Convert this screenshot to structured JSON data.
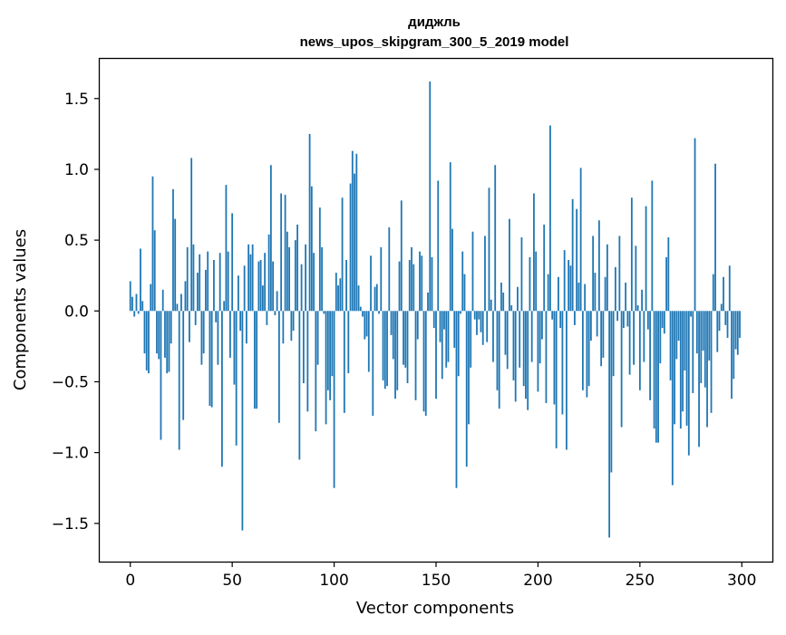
{
  "chart_data": {
    "type": "bar",
    "title": "диджль",
    "subtitle": "news_upos_skipgram_300_5_2019 model",
    "xlabel": "Vector components",
    "ylabel": "Components values",
    "xlim": [
      -15,
      315
    ],
    "ylim": [
      -1.77,
      1.78
    ],
    "xticks": [
      0,
      50,
      100,
      150,
      200,
      250,
      300
    ],
    "xtick_labels": [
      "0",
      "50",
      "100",
      "150",
      "200",
      "250",
      "300"
    ],
    "yticks": [
      1.5,
      1.0,
      0.5,
      0.0,
      -0.5,
      -1.0,
      -1.5
    ],
    "ytick_labels": [
      "1.5",
      "1.0",
      "0.5",
      "0.0",
      "−0.5",
      "−1.0",
      "−1.5"
    ],
    "grid": false,
    "bar_color": "#1f77b4",
    "values": [
      0.21,
      0.1,
      -0.04,
      0.12,
      -0.02,
      0.44,
      0.07,
      -0.3,
      -0.42,
      -0.44,
      0.19,
      0.95,
      0.57,
      -0.3,
      -0.34,
      -0.91,
      0.15,
      -0.33,
      -0.44,
      -0.43,
      -0.23,
      0.86,
      0.65,
      0.05,
      -0.98,
      0.12,
      -0.77,
      0.21,
      0.45,
      -0.22,
      1.08,
      0.47,
      -0.1,
      0.27,
      0.4,
      -0.38,
      -0.3,
      0.29,
      0.42,
      -0.67,
      -0.68,
      0.36,
      -0.08,
      -0.38,
      0.41,
      -1.1,
      0.07,
      0.89,
      0.42,
      -0.33,
      0.69,
      -0.52,
      -0.95,
      0.25,
      -0.14,
      -1.55,
      0.32,
      -0.23,
      0.47,
      0.4,
      0.47,
      -0.69,
      -0.69,
      0.35,
      0.36,
      0.18,
      0.41,
      -0.1,
      0.54,
      1.03,
      0.35,
      -0.03,
      0.14,
      -0.79,
      0.83,
      -0.23,
      0.82,
      0.56,
      0.45,
      -0.21,
      -0.14,
      0.5,
      0.61,
      -1.05,
      0.33,
      -0.51,
      0.47,
      -0.71,
      1.25,
      0.88,
      0.41,
      -0.85,
      -0.38,
      0.73,
      0.45,
      -0.02,
      -0.8,
      -0.56,
      -0.63,
      -0.46,
      -1.25,
      0.27,
      0.18,
      0.23,
      0.8,
      -0.72,
      0.36,
      -0.44,
      0.9,
      1.13,
      0.97,
      1.11,
      0.18,
      0.03,
      -0.04,
      -0.2,
      -0.18,
      -0.43,
      0.39,
      -0.74,
      0.17,
      0.19,
      -0.02,
      0.45,
      -0.49,
      -0.55,
      -0.53,
      0.59,
      -0.17,
      -0.34,
      -0.62,
      -0.56,
      0.35,
      0.78,
      -0.38,
      -0.4,
      -0.51,
      0.36,
      0.45,
      0.33,
      -0.63,
      -0.2,
      0.42,
      0.39,
      -0.71,
      -0.74,
      0.13,
      1.62,
      0.38,
      -0.12,
      -0.62,
      0.92,
      -0.22,
      -0.48,
      -0.13,
      -0.4,
      -0.36,
      1.05,
      0.58,
      -0.26,
      -1.25,
      -0.46,
      -0.02,
      0.42,
      0.26,
      -1.1,
      -0.8,
      -0.4,
      0.56,
      -0.06,
      -0.17,
      -0.06,
      -0.15,
      -0.24,
      0.53,
      -0.22,
      0.87,
      0.08,
      -0.36,
      1.03,
      -0.56,
      -0.69,
      0.2,
      0.13,
      -0.31,
      -0.41,
      0.65,
      0.04,
      -0.49,
      -0.64,
      0.17,
      -0.4,
      0.52,
      -0.53,
      -0.62,
      -0.7,
      0.38,
      -0.36,
      0.83,
      0.42,
      -0.57,
      -0.37,
      -0.2,
      0.61,
      -0.65,
      0.26,
      1.31,
      -0.06,
      -0.66,
      -0.97,
      0.24,
      -0.12,
      -0.73,
      0.43,
      -0.98,
      0.36,
      0.32,
      0.79,
      -0.1,
      0.72,
      0.2,
      1.01,
      -0.56,
      0.19,
      -0.61,
      -0.53,
      -0.21,
      0.53,
      0.27,
      -0.18,
      0.64,
      -0.39,
      -0.33,
      0.24,
      0.47,
      -1.6,
      -1.14,
      -0.46,
      0.31,
      -0.07,
      0.53,
      -0.82,
      -0.12,
      0.2,
      -0.11,
      -0.45,
      0.8,
      -0.38,
      0.46,
      0.04,
      -0.56,
      0.15,
      -0.36,
      0.74,
      -0.13,
      -0.63,
      0.92,
      -0.83,
      -0.93,
      -0.93,
      -0.37,
      -0.12,
      -0.16,
      0.38,
      0.52,
      -0.49,
      -1.23,
      -0.8,
      -0.34,
      -0.21,
      -0.83,
      -0.71,
      -0.42,
      -0.81,
      -1.02,
      -0.04,
      -0.58,
      1.22,
      -0.3,
      -0.96,
      -0.51,
      -0.28,
      -0.54,
      -0.82,
      -0.35,
      -0.72,
      0.26,
      1.04,
      -0.29,
      -0.14,
      0.05,
      0.24,
      -0.1,
      -0.19,
      0.32,
      -0.62,
      -0.48,
      -0.27,
      -0.31,
      -0.19
    ]
  }
}
